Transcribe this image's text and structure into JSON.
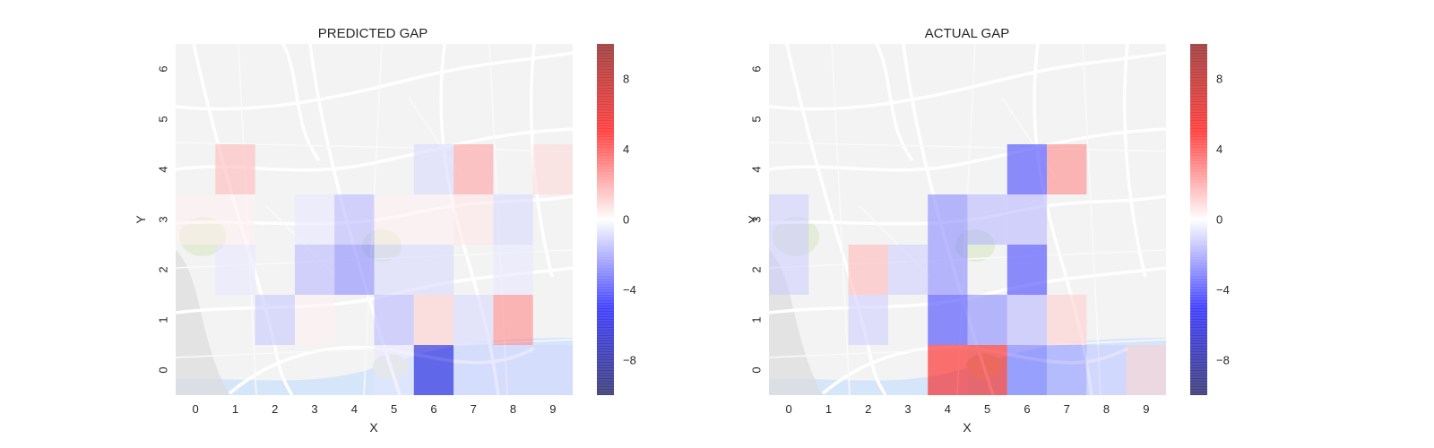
{
  "chart_data": [
    {
      "type": "heatmap",
      "title": "PREDICTED GAP",
      "xlabel": "X",
      "ylabel": "Y",
      "x_ticks": [
        "0",
        "1",
        "2",
        "3",
        "4",
        "5",
        "6",
        "7",
        "8",
        "9"
      ],
      "y_ticks": [
        "0",
        "1",
        "2",
        "3",
        "4",
        "5",
        "6"
      ],
      "cells": [
        {
          "x": 1,
          "y": 4,
          "value": 1.5
        },
        {
          "x": 6,
          "y": 4,
          "value": -0.8
        },
        {
          "x": 7,
          "y": 4,
          "value": 2.0
        },
        {
          "x": 9,
          "y": 4,
          "value": 0.8
        },
        {
          "x": 0,
          "y": 3,
          "value": 0.3
        },
        {
          "x": 1,
          "y": 3,
          "value": 0.3
        },
        {
          "x": 3,
          "y": 3,
          "value": -0.5
        },
        {
          "x": 4,
          "y": 3,
          "value": -1.5
        },
        {
          "x": 5,
          "y": 3,
          "value": 0.3
        },
        {
          "x": 6,
          "y": 3,
          "value": 0.3
        },
        {
          "x": 7,
          "y": 3,
          "value": 0.5
        },
        {
          "x": 8,
          "y": 3,
          "value": -0.8
        },
        {
          "x": 1,
          "y": 2,
          "value": -0.5
        },
        {
          "x": 3,
          "y": 2,
          "value": -1.5
        },
        {
          "x": 4,
          "y": 2,
          "value": -2.5
        },
        {
          "x": 5,
          "y": 2,
          "value": -0.8
        },
        {
          "x": 6,
          "y": 2,
          "value": -0.8
        },
        {
          "x": 8,
          "y": 2,
          "value": -0.5
        },
        {
          "x": 2,
          "y": 1,
          "value": -1.2
        },
        {
          "x": 3,
          "y": 1,
          "value": 0.3
        },
        {
          "x": 5,
          "y": 1,
          "value": -1.5
        },
        {
          "x": 6,
          "y": 1,
          "value": 1.0
        },
        {
          "x": 7,
          "y": 1,
          "value": -0.8
        },
        {
          "x": 8,
          "y": 1,
          "value": 2.5
        },
        {
          "x": 5,
          "y": 0,
          "value": -0.5
        },
        {
          "x": 6,
          "y": 0,
          "value": -6.0
        },
        {
          "x": 7,
          "y": 0,
          "value": -0.8
        },
        {
          "x": 8,
          "y": 0,
          "value": -0.8
        },
        {
          "x": 9,
          "y": 0,
          "value": -0.8
        }
      ],
      "colorbar": {
        "min": -10,
        "max": 10,
        "ticks": [
          8,
          4,
          0,
          -4,
          -8
        ],
        "tick_labels": [
          "8",
          "4",
          "0",
          "−4",
          "−8"
        ],
        "colormap": "seismic"
      }
    },
    {
      "type": "heatmap",
      "title": "ACTUAL GAP",
      "xlabel": "X",
      "ylabel": "Y",
      "x_ticks": [
        "0",
        "1",
        "2",
        "3",
        "4",
        "5",
        "6",
        "7",
        "8",
        "9"
      ],
      "y_ticks": [
        "0",
        "1",
        "2",
        "3",
        "4",
        "5",
        "6"
      ],
      "cells": [
        {
          "x": 6,
          "y": 4,
          "value": -4.0
        },
        {
          "x": 7,
          "y": 4,
          "value": 2.5
        },
        {
          "x": 0,
          "y": 3,
          "value": -1.0
        },
        {
          "x": 4,
          "y": 3,
          "value": -2.5
        },
        {
          "x": 5,
          "y": 3,
          "value": -1.5
        },
        {
          "x": 6,
          "y": 3,
          "value": -1.5
        },
        {
          "x": 0,
          "y": 2,
          "value": -1.0
        },
        {
          "x": 2,
          "y": 2,
          "value": 1.5
        },
        {
          "x": 3,
          "y": 2,
          "value": -1.0
        },
        {
          "x": 4,
          "y": 2,
          "value": -2.5
        },
        {
          "x": 6,
          "y": 2,
          "value": -4.0
        },
        {
          "x": 2,
          "y": 1,
          "value": -1.0
        },
        {
          "x": 4,
          "y": 1,
          "value": -4.0
        },
        {
          "x": 5,
          "y": 1,
          "value": -2.5
        },
        {
          "x": 6,
          "y": 1,
          "value": -1.5
        },
        {
          "x": 7,
          "y": 1,
          "value": 1.0
        },
        {
          "x": 4,
          "y": 0,
          "value": 5.0
        },
        {
          "x": 5,
          "y": 0,
          "value": 5.5
        },
        {
          "x": 6,
          "y": 0,
          "value": -3.0
        },
        {
          "x": 7,
          "y": 0,
          "value": -2.0
        },
        {
          "x": 8,
          "y": 0,
          "value": -1.0
        },
        {
          "x": 9,
          "y": 0,
          "value": 1.0
        }
      ],
      "colorbar": {
        "min": -10,
        "max": 10,
        "ticks": [
          8,
          4,
          0,
          -4,
          -8
        ],
        "tick_labels": [
          "8",
          "4",
          "0",
          "−4",
          "−8"
        ],
        "colormap": "seismic"
      }
    }
  ],
  "colors": {
    "map_background": "#f3f3f3",
    "map_road": "#ffffff",
    "map_water": "#d6e6fa",
    "map_park": "#e3ecd6",
    "text": "#262626"
  }
}
